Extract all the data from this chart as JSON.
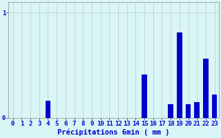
{
  "categories": [
    0,
    1,
    2,
    3,
    4,
    5,
    6,
    7,
    8,
    9,
    10,
    11,
    12,
    13,
    14,
    15,
    16,
    17,
    18,
    19,
    20,
    21,
    22,
    23
  ],
  "values": [
    0,
    0,
    0,
    0,
    0.16,
    0,
    0,
    0,
    0,
    0,
    0,
    0,
    0,
    0,
    0,
    0.41,
    0,
    0,
    0.13,
    0.81,
    0.13,
    0.15,
    0.56,
    0.22
  ],
  "bar_color": "#0000cc",
  "bg_color": "#d9f5f5",
  "grid_color": "#c0d0d0",
  "axis_color": "#888888",
  "text_color": "#0000cc",
  "xlabel": "Précipitations 6min ( mm )",
  "ylim": [
    0,
    1.1
  ],
  "yticks": [
    0,
    1
  ],
  "ytick_labels": [
    "0",
    "1"
  ],
  "xticks": [
    0,
    1,
    2,
    3,
    4,
    5,
    6,
    7,
    8,
    9,
    10,
    11,
    12,
    13,
    14,
    15,
    16,
    17,
    18,
    19,
    20,
    21,
    22,
    23
  ],
  "xlabel_fontsize": 7.5,
  "tick_fontsize": 6.5,
  "bar_width": 0.6,
  "figsize": [
    3.2,
    2.0
  ],
  "dpi": 100
}
